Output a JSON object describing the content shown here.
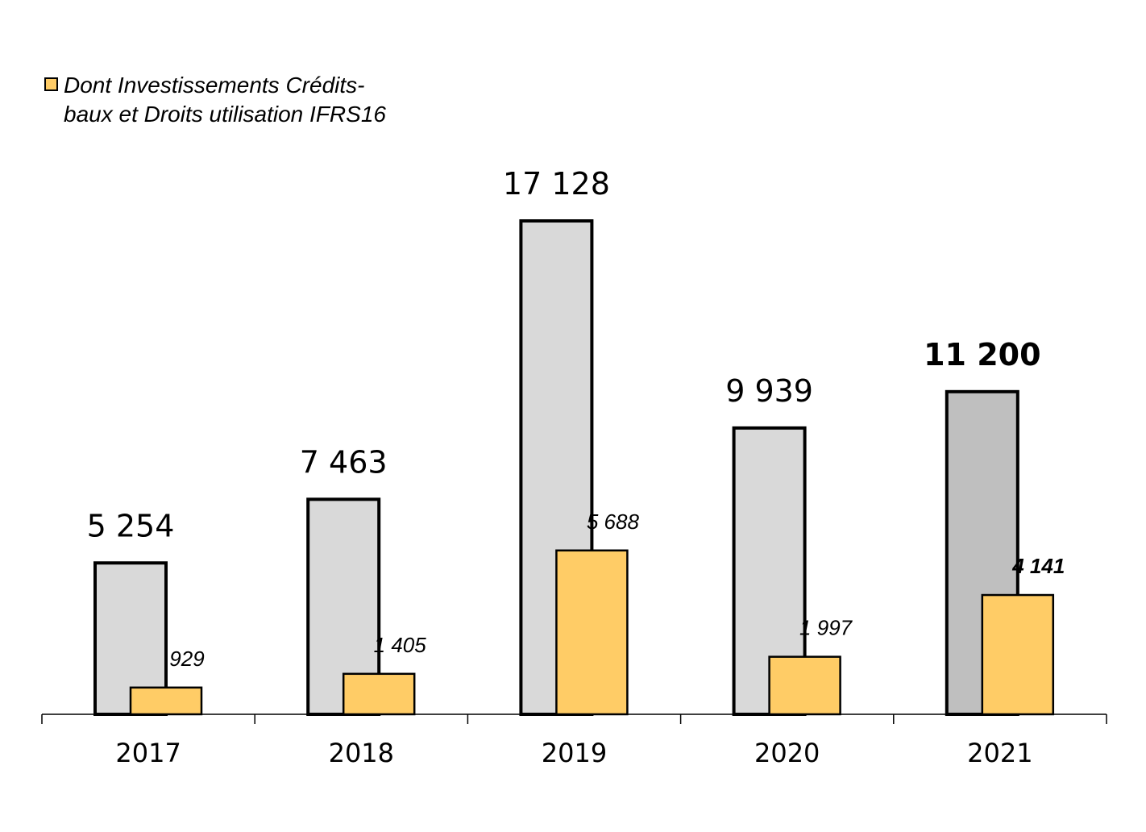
{
  "chart_data": {
    "type": "bar",
    "categories": [
      "2017",
      "2018",
      "2019",
      "2020",
      "2021"
    ],
    "series": [
      {
        "values": [
          5254,
          7463,
          17128,
          9939,
          11200
        ],
        "labels": [
          "5 254",
          "7 463",
          "17 128",
          "9 939",
          "11 200"
        ],
        "color": "#D9D9D9",
        "highlight_color": "#BFBFBF"
      },
      {
        "name": "Dont Investissements Crédits-baux et Droits utilisation IFRS16",
        "values": [
          929,
          1405,
          5688,
          1997,
          4141
        ],
        "labels": [
          "929",
          "1 405",
          "5 688",
          "1 997",
          "4 141"
        ],
        "color": "#FFCC66"
      }
    ],
    "bold_categories": [
      "2021"
    ],
    "ylim": [
      0,
      17128
    ],
    "grid": false,
    "legend": {
      "position": "top-left",
      "lines": [
        "Dont Investissements Crédits-",
        "baux et Droits utilisation IFRS16"
      ]
    }
  }
}
